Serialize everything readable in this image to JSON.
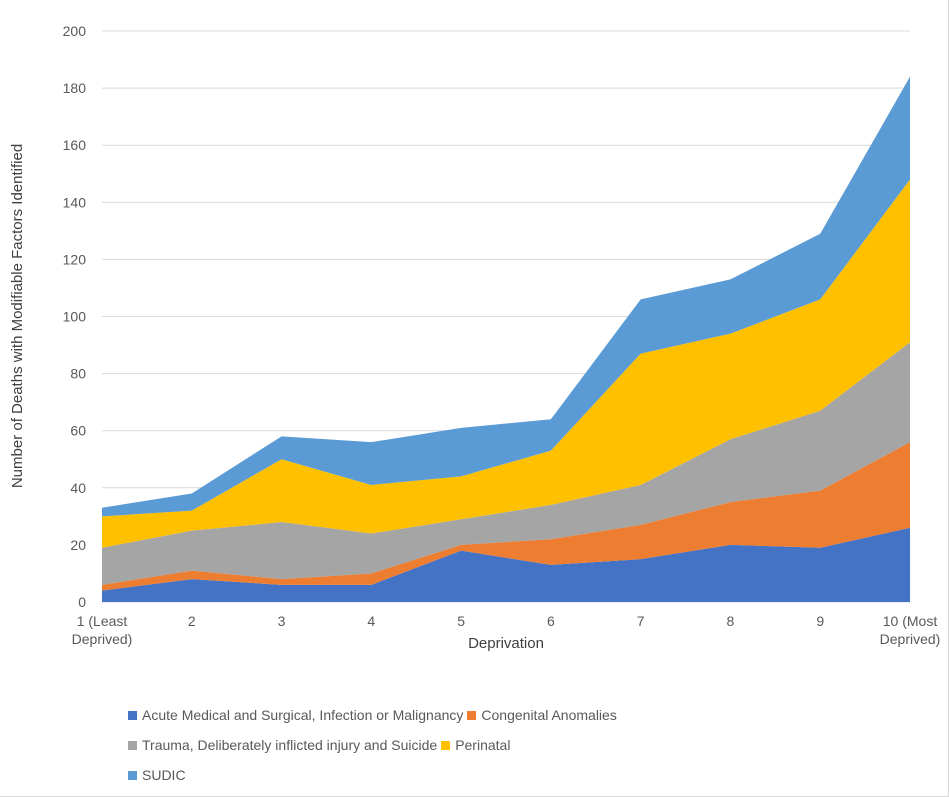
{
  "chart_data": {
    "type": "area",
    "stacked": true,
    "title": "",
    "xlabel": "Deprivation",
    "ylabel": "Number of Deaths with Modifiable Factors Identified",
    "ylim": [
      0,
      200
    ],
    "yticks": [
      0,
      20,
      40,
      60,
      80,
      100,
      120,
      140,
      160,
      180,
      200
    ],
    "grid": true,
    "legend_position": "bottom",
    "categories": [
      [
        "1 (Least",
        "Deprived)"
      ],
      [
        "2"
      ],
      [
        "3"
      ],
      [
        "4"
      ],
      [
        "5"
      ],
      [
        "6"
      ],
      [
        "7"
      ],
      [
        "8"
      ],
      [
        "9"
      ],
      [
        "10 (Most",
        "Deprived)"
      ]
    ],
    "series": [
      {
        "name": "Acute Medical and Surgical, Infection or Malignancy",
        "color": "#4472C4",
        "values": [
          4,
          8,
          6,
          6,
          18,
          13,
          15,
          20,
          19,
          26
        ]
      },
      {
        "name": "Congenital Anomalies",
        "color": "#ED7D31",
        "values": [
          2,
          3,
          2,
          4,
          2,
          9,
          12,
          15,
          20,
          30
        ]
      },
      {
        "name": "Trauma, Deliberately inflicted injury and Suicide",
        "color": "#A5A5A5",
        "values": [
          13,
          14,
          20,
          14,
          9,
          12,
          14,
          22,
          28,
          35
        ]
      },
      {
        "name": "Perinatal",
        "color": "#FFC000",
        "values": [
          11,
          7,
          22,
          17,
          15,
          19,
          46,
          37,
          39,
          57
        ]
      },
      {
        "name": "SUDIC",
        "color": "#5B9BD5",
        "values": [
          3,
          6,
          8,
          15,
          17,
          11,
          19,
          19,
          23,
          36
        ]
      }
    ]
  },
  "legend_rows": [
    [
      0,
      1
    ],
    [
      2,
      3
    ],
    [
      4
    ]
  ]
}
